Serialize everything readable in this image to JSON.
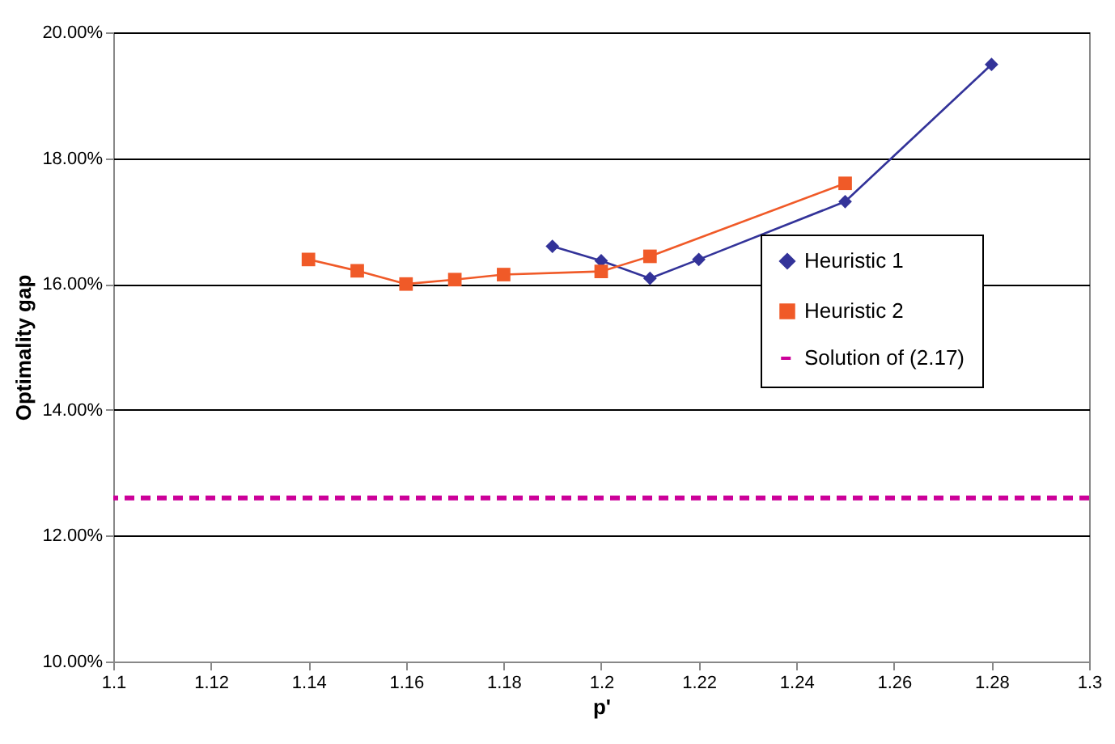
{
  "chart_data": {
    "type": "line",
    "xlabel": "p'",
    "ylabel": "Optimality gap",
    "series": [
      {
        "name": "Heuristic 1",
        "color": "#333399",
        "marker": "diamond",
        "x": [
          1.19,
          1.2,
          1.21,
          1.22,
          1.25,
          1.28
        ],
        "values": [
          16.6,
          16.37,
          16.09,
          16.39,
          17.31,
          19.49
        ]
      },
      {
        "name": "Heuristic 2",
        "color": "#f05a28",
        "marker": "square",
        "x": [
          1.14,
          1.15,
          1.16,
          1.17,
          1.18,
          1.2,
          1.21,
          1.25
        ],
        "values": [
          16.39,
          16.21,
          16.0,
          16.07,
          16.15,
          16.2,
          16.44,
          17.6
        ]
      }
    ],
    "ref_lines": [
      {
        "axis": "y",
        "value": 12.6,
        "label": "Solution of (2.17)",
        "color": "#cc0099",
        "line_style": "dashed"
      }
    ],
    "xlim": [
      1.1,
      1.3
    ],
    "xticks": [
      1.1,
      1.12,
      1.14,
      1.16,
      1.18,
      1.2,
      1.22,
      1.24,
      1.26,
      1.28,
      1.3
    ],
    "ylim": [
      10,
      20
    ],
    "yticks": [
      {
        "value": 10,
        "label": "10.00%"
      },
      {
        "value": 12,
        "label": "12.00%"
      },
      {
        "value": 14,
        "label": "14.00%"
      },
      {
        "value": 16,
        "label": "16.00%"
      },
      {
        "value": 18,
        "label": "18.00%"
      },
      {
        "value": 20,
        "label": "20.00%"
      }
    ],
    "grid": "y",
    "legend": "right"
  }
}
